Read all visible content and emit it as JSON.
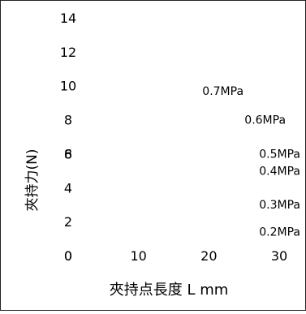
{
  "chart_data": {
    "type": "line",
    "xlabel": "夾持点長度 L mm",
    "ylabel": "夾持力(N)",
    "xlim": [
      0,
      30
    ],
    "ylim": [
      0,
      14
    ],
    "x_ticks": [
      "0",
      "10",
      "20",
      "30"
    ],
    "y_ticks": [
      "0",
      "2",
      "4",
      "6",
      "8",
      "10",
      "12",
      "14"
    ],
    "y_tick_overlap": {
      "value": 6,
      "label": "8"
    },
    "grid": false,
    "series": [
      {
        "name": "0.7MPa",
        "label_x": 22,
        "label_y": 9.7
      },
      {
        "name": "0.6MPa",
        "label_x": 28,
        "label_y": 8.0
      },
      {
        "name": "0.5MPa",
        "label_x": 35,
        "label_y": 6.0
      },
      {
        "name": "0.4MPa",
        "label_x": 35,
        "label_y": 5.0
      },
      {
        "name": "0.3MPa",
        "label_x": 35,
        "label_y": 3.0
      },
      {
        "name": "0.2MPa",
        "label_x": 35,
        "label_y": 1.4
      }
    ]
  }
}
